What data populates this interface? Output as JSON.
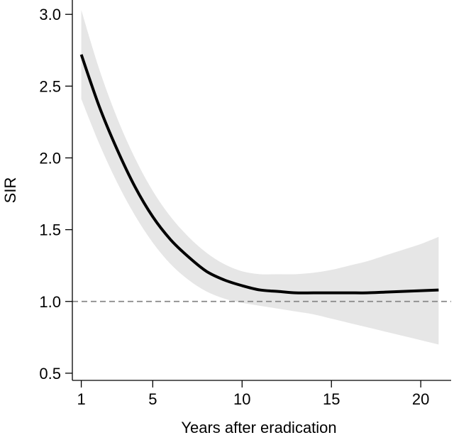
{
  "chart_data": {
    "type": "line",
    "title": "",
    "xlabel": "Years after eradication",
    "ylabel": "SIR",
    "xlim": [
      0.5,
      21.7
    ],
    "ylim": [
      0.45,
      3.1
    ],
    "xticks": [
      1,
      5,
      10,
      15,
      20
    ],
    "yticks": [
      0.5,
      1.0,
      1.5,
      2.0,
      2.5,
      3.0
    ],
    "ytick_labels": [
      "0.5",
      "1.0",
      "1.5",
      "2.0",
      "2.5",
      "3.0"
    ],
    "grid": false,
    "legend": "none",
    "reference_line": {
      "y": 1.0,
      "style": "dashed",
      "color": "#888888"
    },
    "colors": {
      "line": "#000000",
      "band": "#e6e6e6"
    },
    "series": [
      {
        "x": [
          1,
          2,
          3,
          4,
          5,
          6,
          7,
          8,
          9,
          10,
          11,
          12,
          13,
          14,
          15,
          16,
          17,
          18,
          19,
          20,
          21
        ],
        "y": [
          2.72,
          2.36,
          2.06,
          1.8,
          1.59,
          1.43,
          1.31,
          1.21,
          1.15,
          1.11,
          1.08,
          1.07,
          1.06,
          1.06,
          1.06,
          1.06,
          1.06,
          1.065,
          1.07,
          1.075,
          1.08
        ],
        "lower": [
          2.41,
          2.1,
          1.83,
          1.6,
          1.41,
          1.26,
          1.15,
          1.07,
          1.02,
          0.99,
          0.97,
          0.95,
          0.93,
          0.91,
          0.88,
          0.85,
          0.82,
          0.79,
          0.76,
          0.73,
          0.7
        ],
        "upper": [
          3.03,
          2.62,
          2.28,
          2.0,
          1.77,
          1.59,
          1.45,
          1.34,
          1.26,
          1.21,
          1.19,
          1.19,
          1.19,
          1.2,
          1.22,
          1.25,
          1.28,
          1.32,
          1.36,
          1.4,
          1.45
        ]
      }
    ]
  }
}
